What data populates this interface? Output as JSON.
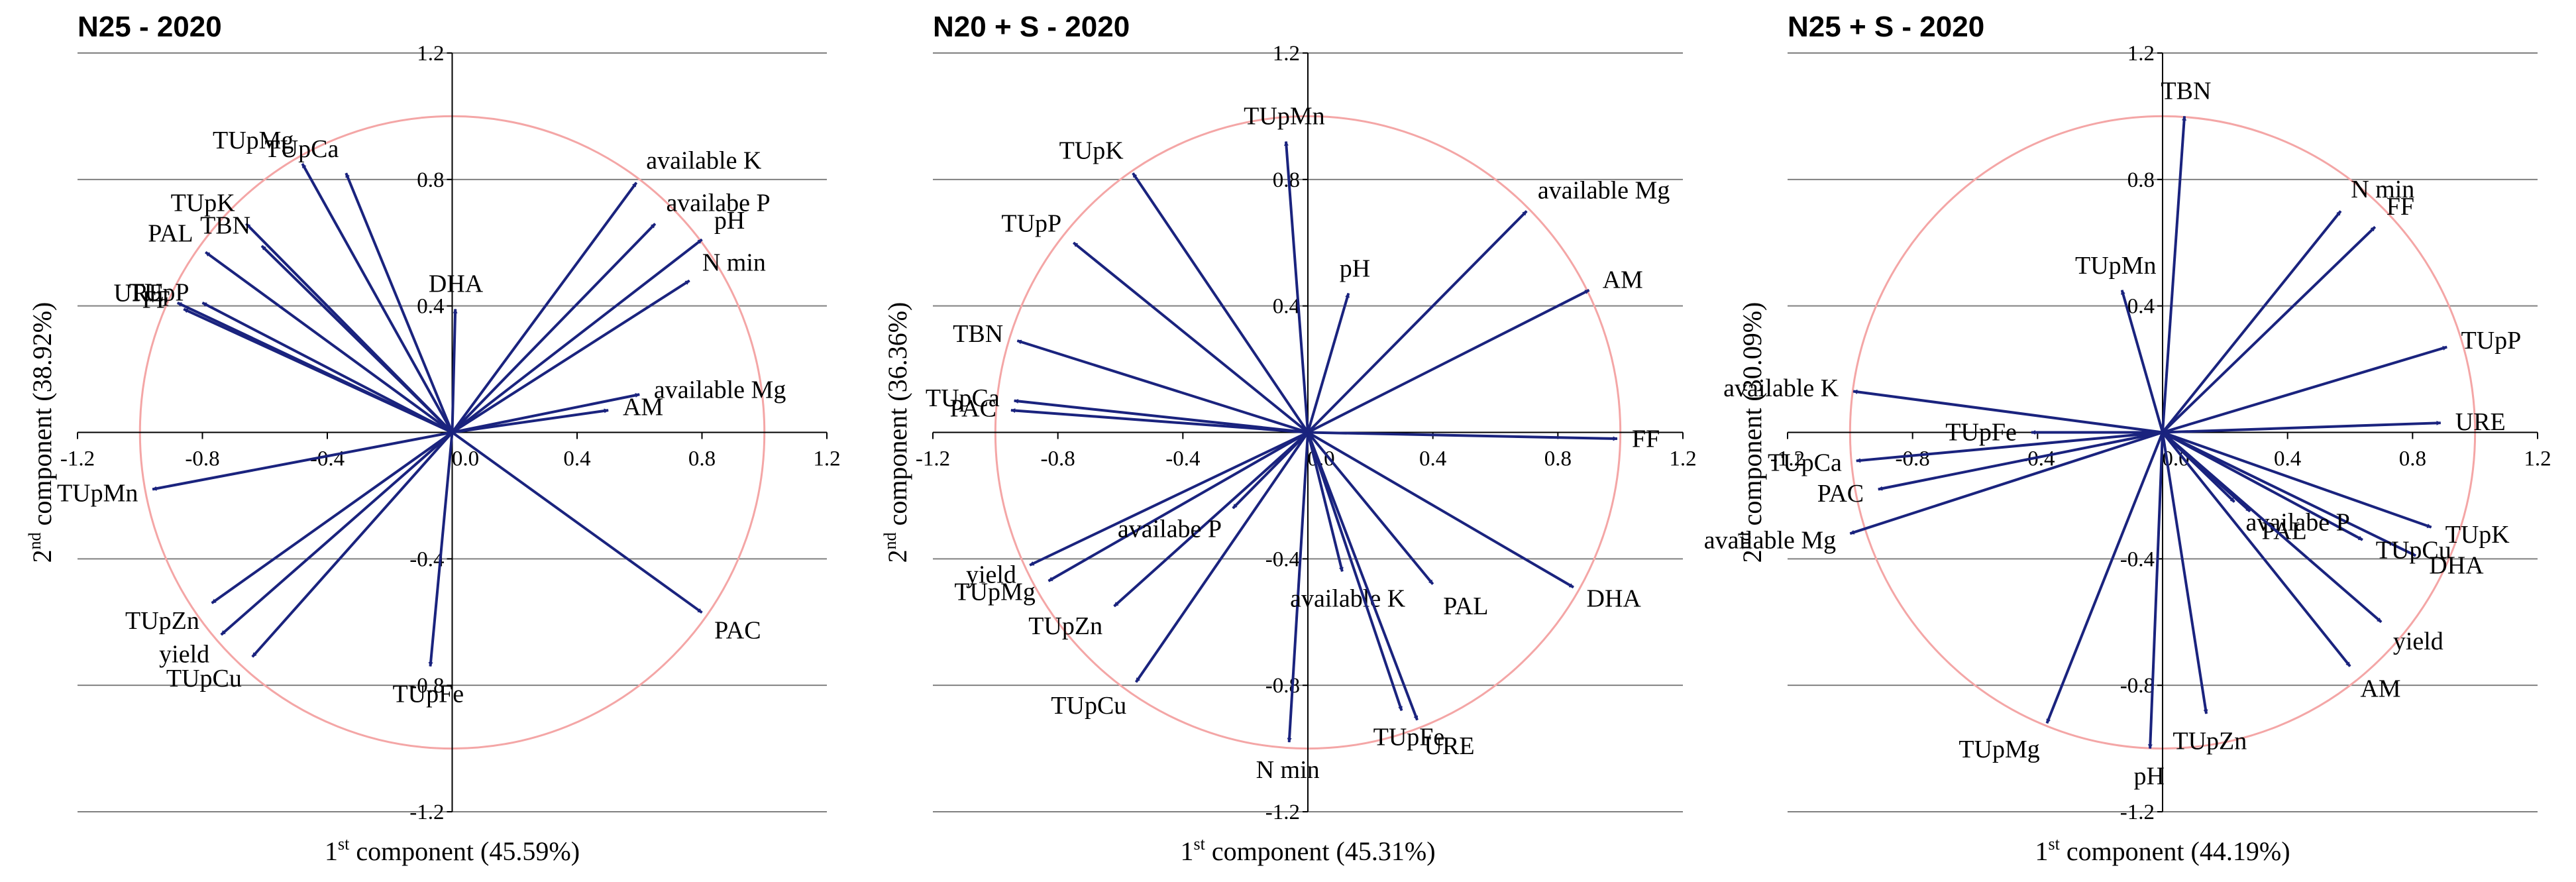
{
  "chart_data": [
    {
      "type": "biplot",
      "title": "N25 - 2020",
      "xlabel": {
        "ordinal": "1",
        "suffix": "st",
        "text": "component (45.59%)"
      },
      "ylabel": {
        "ordinal": "2",
        "suffix": "nd",
        "text": "component (38.92%)"
      },
      "xlim": [
        -1.2,
        1.2
      ],
      "ylim": [
        -1.2,
        1.2
      ],
      "x_ticks": [
        "-1.2",
        "-0.8",
        "-0.4",
        "0.0",
        "0.4",
        "0.8",
        "1.2"
      ],
      "y_ticks": [
        "1.2",
        "0.8",
        "0.4",
        "0.0",
        "-0.4",
        "-0.8",
        "-1.2"
      ],
      "circle_radius": 1.0,
      "vectors": [
        {
          "label": "available K",
          "x": 0.59,
          "y": 0.79
        },
        {
          "label": "availabe P",
          "x": 0.65,
          "y": 0.66
        },
        {
          "label": "pH",
          "x": 0.8,
          "y": 0.61
        },
        {
          "label": "N min",
          "x": 0.76,
          "y": 0.48
        },
        {
          "label": "available Mg",
          "x": 0.6,
          "y": 0.12
        },
        {
          "label": "AM",
          "x": 0.5,
          "y": 0.07
        },
        {
          "label": "PAC",
          "x": 0.8,
          "y": -0.57
        },
        {
          "label": "TUpFe",
          "x": -0.07,
          "y": -0.74
        },
        {
          "label": "TUpCu",
          "x": -0.64,
          "y": -0.71
        },
        {
          "label": "yield",
          "x": -0.74,
          "y": -0.64
        },
        {
          "label": "TUpZn",
          "x": -0.77,
          "y": -0.54
        },
        {
          "label": "TUpMn",
          "x": -0.96,
          "y": -0.18
        },
        {
          "label": "FF",
          "x": -0.86,
          "y": 0.39
        },
        {
          "label": "URE",
          "x": -0.88,
          "y": 0.41
        },
        {
          "label": "TUpP",
          "x": -0.8,
          "y": 0.41
        },
        {
          "label": "PAL",
          "x": -0.79,
          "y": 0.57
        },
        {
          "label": "TUpK",
          "x": -0.66,
          "y": 0.66
        },
        {
          "label": "TBN",
          "x": -0.61,
          "y": 0.59
        },
        {
          "label": "TUpMg",
          "x": -0.48,
          "y": 0.85
        },
        {
          "label": "TUpCa",
          "x": -0.34,
          "y": 0.82
        },
        {
          "label": "DHA",
          "x": 0.01,
          "y": 0.39
        }
      ]
    },
    {
      "type": "biplot",
      "title": "N20 + S - 2020",
      "xlabel": {
        "ordinal": "1",
        "suffix": "st",
        "text": "component (45.31%)"
      },
      "ylabel": {
        "ordinal": "2",
        "suffix": "nd",
        "text": "component (36.36%)"
      },
      "xlim": [
        -1.2,
        1.2
      ],
      "ylim": [
        -1.2,
        1.2
      ],
      "x_ticks": [
        "-1.2",
        "-0.8",
        "-0.4",
        "0.0",
        "0.4",
        "0.8",
        "1.2"
      ],
      "y_ticks": [
        "1.2",
        "0.8",
        "0.4",
        "0.0",
        "-0.4",
        "-0.8",
        "-1.2"
      ],
      "circle_radius": 1.0,
      "vectors": [
        {
          "label": "TUpMn",
          "x": -0.07,
          "y": 0.92
        },
        {
          "label": "TUpK",
          "x": -0.56,
          "y": 0.82
        },
        {
          "label": "TUpP",
          "x": -0.75,
          "y": 0.6
        },
        {
          "label": "TBN",
          "x": -0.93,
          "y": 0.29
        },
        {
          "label": "TUpCa",
          "x": -0.94,
          "y": 0.1
        },
        {
          "label": "PAC",
          "x": -0.95,
          "y": 0.07
        },
        {
          "label": "yield",
          "x": -0.89,
          "y": -0.42
        },
        {
          "label": "TUpMg",
          "x": -0.83,
          "y": -0.47
        },
        {
          "label": "TUpZn",
          "x": -0.62,
          "y": -0.55
        },
        {
          "label": "TUpCu",
          "x": -0.55,
          "y": -0.79
        },
        {
          "label": "availabe P",
          "x": -0.24,
          "y": -0.24
        },
        {
          "label": "N min",
          "x": -0.06,
          "y": -0.98
        },
        {
          "label": "available K",
          "x": 0.11,
          "y": -0.44
        },
        {
          "label": "TUpFe",
          "x": 0.3,
          "y": -0.88
        },
        {
          "label": "URE",
          "x": 0.35,
          "y": -0.91
        },
        {
          "label": "PAL",
          "x": 0.4,
          "y": -0.48
        },
        {
          "label": "DHA",
          "x": 0.85,
          "y": -0.49
        },
        {
          "label": "FF",
          "x": 0.99,
          "y": -0.02
        },
        {
          "label": "AM",
          "x": 0.9,
          "y": 0.45
        },
        {
          "label": "available Mg",
          "x": 0.7,
          "y": 0.7
        },
        {
          "label": "pH",
          "x": 0.13,
          "y": 0.44
        }
      ]
    },
    {
      "type": "biplot",
      "title": "N25 + S - 2020",
      "xlabel": {
        "ordinal": "1",
        "suffix": "st",
        "text": "component (44.19%)"
      },
      "ylabel": {
        "ordinal": "2",
        "suffix": "nd",
        "text": "component (30.09%)"
      },
      "xlim": [
        -1.2,
        1.2
      ],
      "ylim": [
        -1.2,
        1.2
      ],
      "x_ticks": [
        "-1.2",
        "-0.8",
        "-0.4",
        "0.0",
        "0.4",
        "0.8",
        "1.2"
      ],
      "y_ticks": [
        "1.2",
        "0.8",
        "0.4",
        "0.0",
        "-0.4",
        "-0.8",
        "-1.2"
      ],
      "circle_radius": 1.0,
      "vectors": [
        {
          "label": "TBN",
          "x": 0.07,
          "y": 1.0
        },
        {
          "label": "N min",
          "x": 0.57,
          "y": 0.7
        },
        {
          "label": "FF",
          "x": 0.68,
          "y": 0.65
        },
        {
          "label": "TUpMn",
          "x": -0.13,
          "y": 0.45
        },
        {
          "label": "TUpP",
          "x": 0.91,
          "y": 0.27
        },
        {
          "label": "URE",
          "x": 0.89,
          "y": 0.03
        },
        {
          "label": "TUpK",
          "x": 0.86,
          "y": -0.3
        },
        {
          "label": "DHA",
          "x": 0.81,
          "y": -0.39
        },
        {
          "label": "TUpCu",
          "x": 0.64,
          "y": -0.34
        },
        {
          "label": "PAL",
          "x": 0.28,
          "y": -0.25
        },
        {
          "label": "availabe P",
          "x": 0.23,
          "y": -0.22
        },
        {
          "label": "yield",
          "x": 0.7,
          "y": -0.6
        },
        {
          "label": "AM",
          "x": 0.6,
          "y": -0.74
        },
        {
          "label": "TUpZn",
          "x": 0.14,
          "y": -0.89
        },
        {
          "label": "pH",
          "x": -0.04,
          "y": -1.0
        },
        {
          "label": "TUpMg",
          "x": -0.37,
          "y": -0.92
        },
        {
          "label": "available Mg",
          "x": -1.0,
          "y": -0.32
        },
        {
          "label": "PAC",
          "x": -0.91,
          "y": -0.18
        },
        {
          "label": "TUpCa",
          "x": -0.98,
          "y": -0.09
        },
        {
          "label": "TUpFe",
          "x": -0.42,
          "y": 0.0
        },
        {
          "label": "available K",
          "x": -0.99,
          "y": 0.13
        }
      ]
    }
  ],
  "colors": {
    "vector": "#1a237e",
    "circle": "#f4a6a6",
    "grid": "#808080",
    "axis": "#000000"
  }
}
